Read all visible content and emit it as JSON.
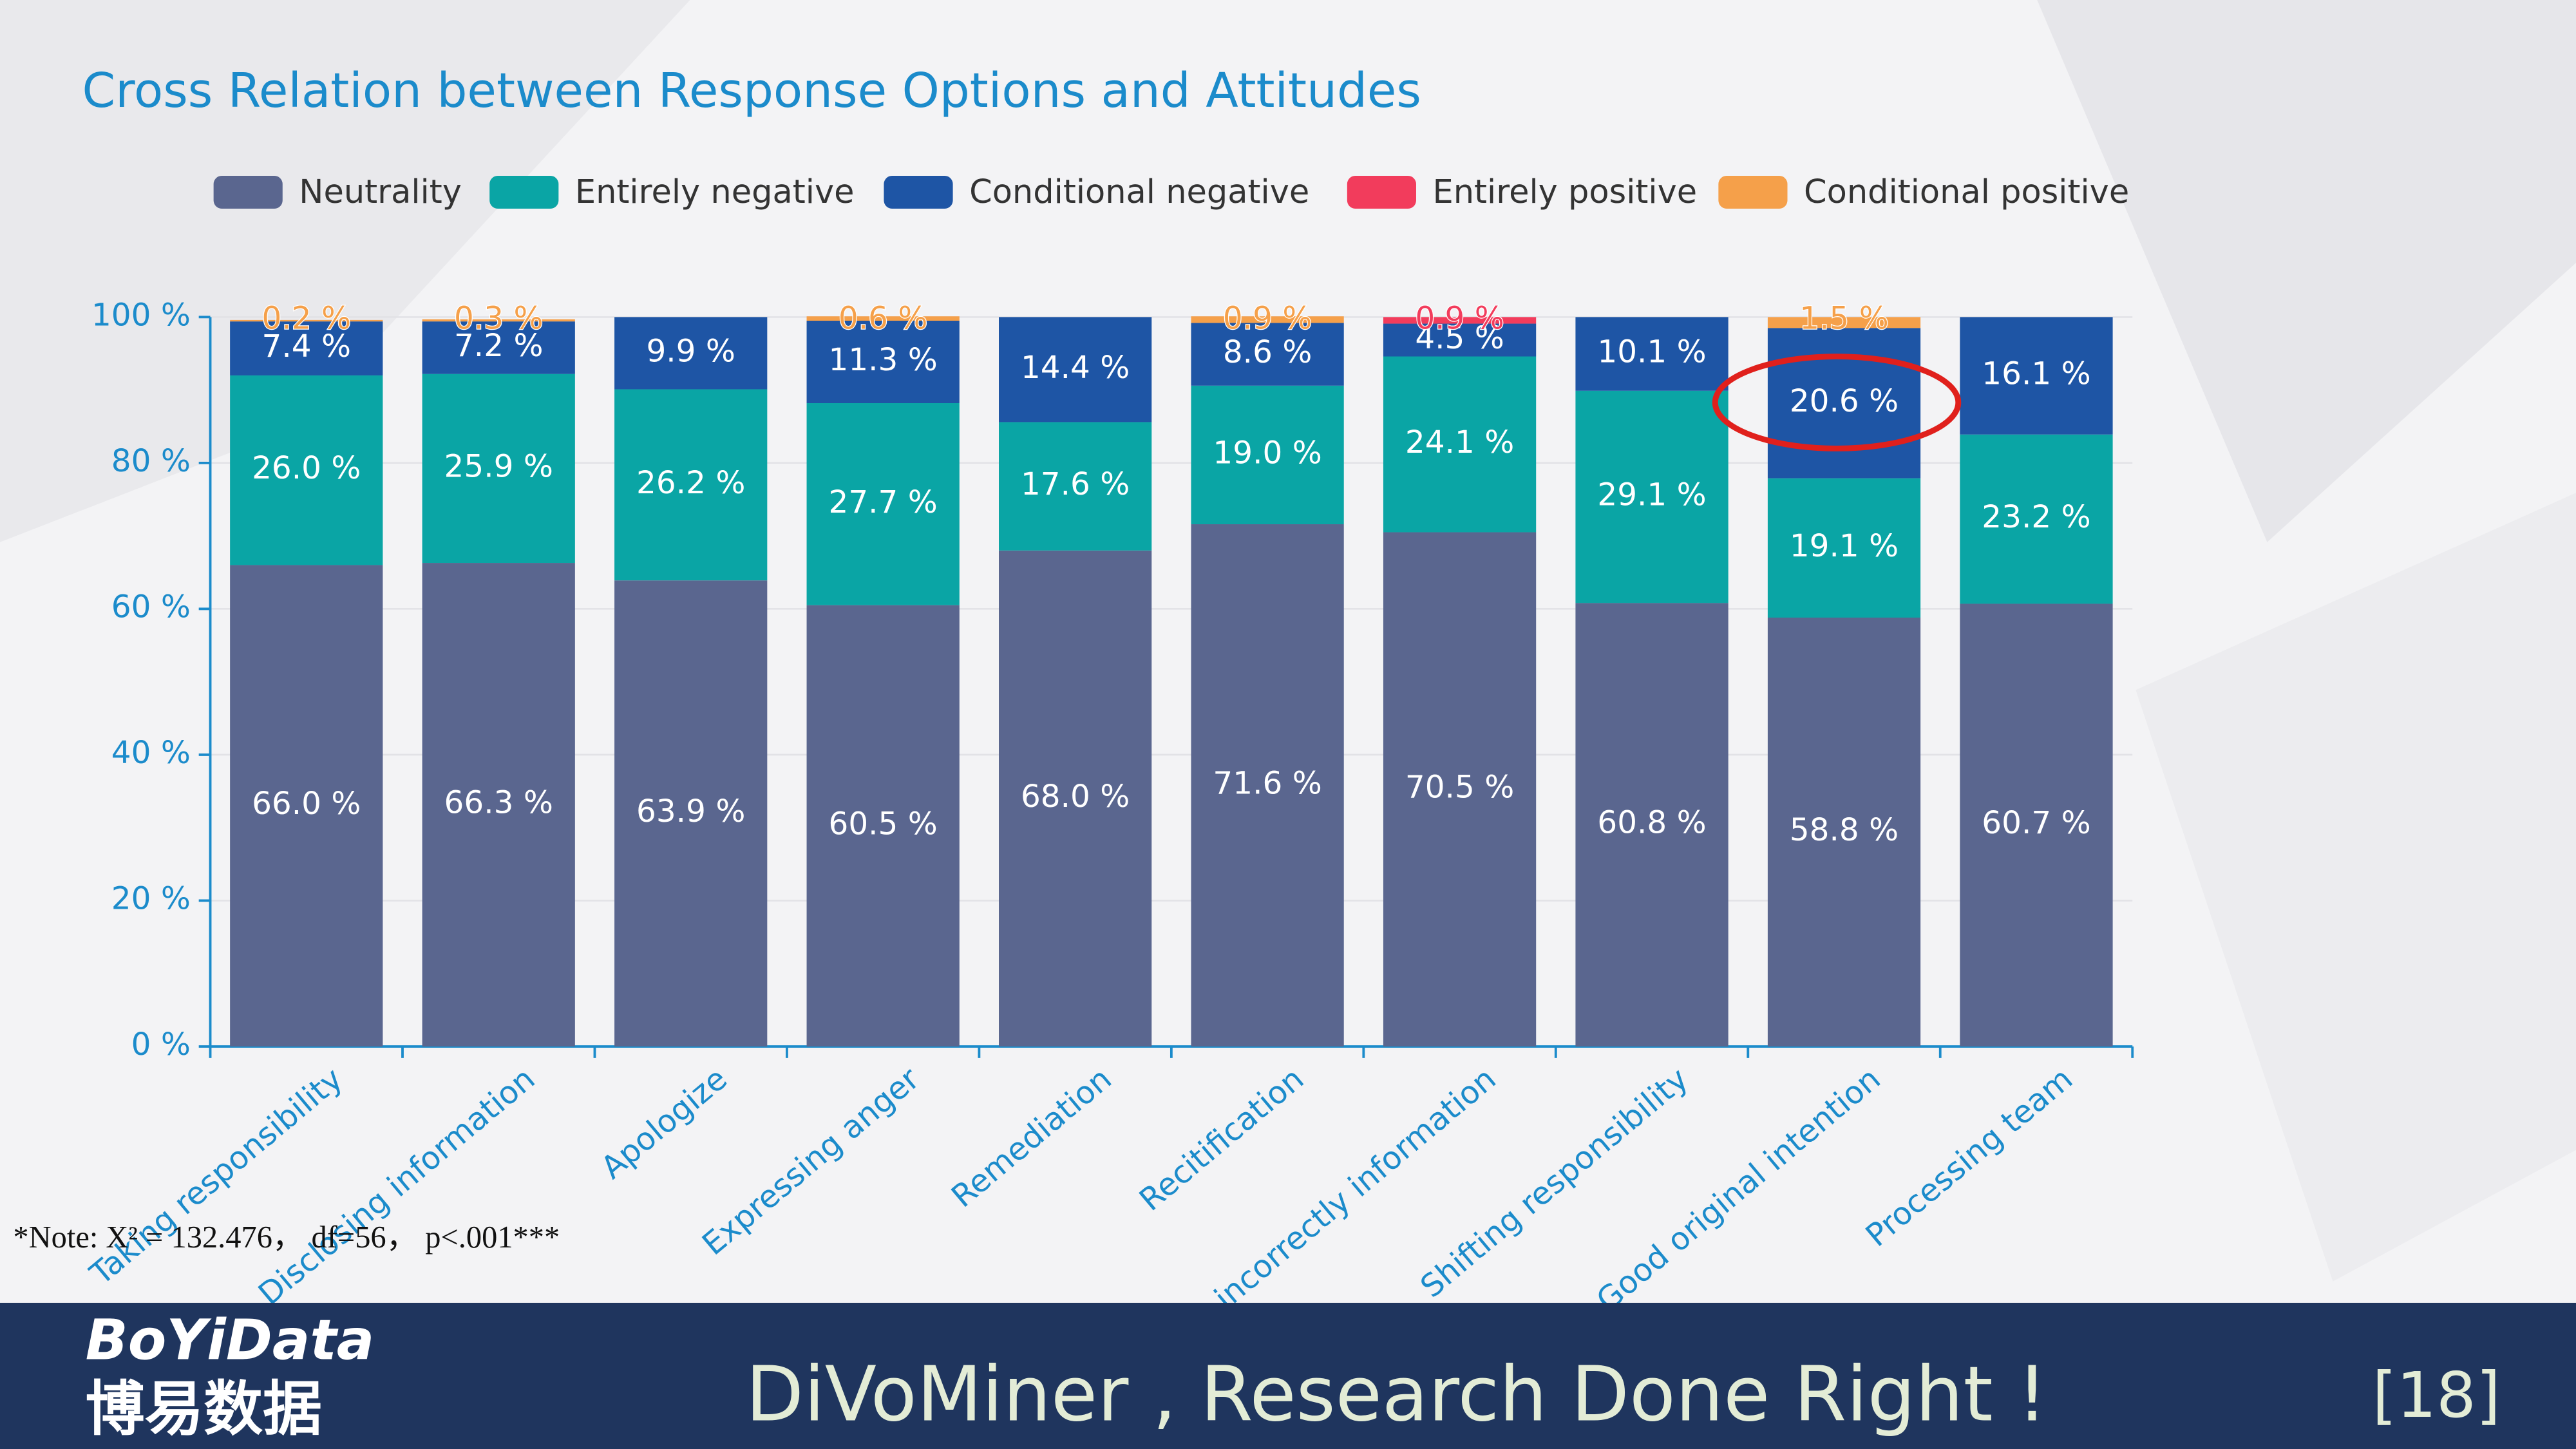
{
  "chart_data": {
    "type": "stacked_bar",
    "title": "Cross Relation between Response Options and Attitudes",
    "categories": [
      "Taking responsibility",
      "Disclosing information",
      "Apologize",
      "Expressing anger",
      "Remediation",
      "Recitification",
      "Attacking incorrectly information",
      "Shifting responsibility",
      "Good original intention",
      "Processing team"
    ],
    "series": [
      {
        "name": "Neutrality",
        "color": "#5a668f",
        "values": [
          66.0,
          66.3,
          63.9,
          60.5,
          68.0,
          71.6,
          70.5,
          60.8,
          58.8,
          60.7
        ],
        "value_labels": [
          "66.0 %",
          "66.3 %",
          "63.9 %",
          "60.5 %",
          "68.0 %",
          "71.6 %",
          "70.5 %",
          "60.8 %",
          "58.8 %",
          "60.7 %"
        ]
      },
      {
        "name": "Entirely negative",
        "color": "#0aa5a5",
        "values": [
          26.0,
          25.9,
          26.2,
          27.7,
          17.6,
          19.0,
          24.1,
          29.1,
          19.1,
          23.2
        ],
        "value_labels": [
          "26.0 %",
          "25.9 %",
          "26.2 %",
          "27.7 %",
          "17.6 %",
          "19.0 %",
          "24.1 %",
          "29.1 %",
          "19.1 %",
          "23.2 %"
        ]
      },
      {
        "name": "Conditional negative",
        "color": "#1e55a5",
        "values": [
          7.4,
          7.2,
          9.9,
          11.3,
          14.4,
          8.6,
          4.5,
          10.1,
          20.6,
          16.1
        ],
        "value_labels": [
          "7.4 %",
          "7.2 %",
          "9.9 %",
          "11.3 %",
          "14.4 %",
          "8.6 %",
          "4.5 %",
          "10.1 %",
          "20.6 %",
          "16.1 %"
        ]
      },
      {
        "name": "Entirely positive",
        "color": "#f23c5c",
        "values": [
          0,
          0,
          0,
          0,
          0,
          0,
          0.9,
          0,
          0,
          0
        ],
        "value_labels": [
          null,
          null,
          null,
          null,
          null,
          null,
          "0.9 %",
          null,
          null,
          null
        ]
      },
      {
        "name": "Conditional positive",
        "color": "#f5a04a",
        "values": [
          0.2,
          0.3,
          0,
          0.6,
          0,
          0.9,
          0,
          0,
          1.5,
          0
        ],
        "value_labels": [
          "0.2 %",
          "0.3 %",
          null,
          "0.6 %",
          null,
          "0.9 %",
          null,
          null,
          "1.5 %",
          null
        ]
      }
    ],
    "ylim": [
      0,
      100
    ],
    "yticks": [
      {
        "value": 0,
        "label": "0 %"
      },
      {
        "value": 20,
        "label": "20 %"
      },
      {
        "value": 40,
        "label": "40 %"
      },
      {
        "value": 60,
        "label": "60 %"
      },
      {
        "value": 80,
        "label": "80 %"
      },
      {
        "value": 100,
        "label": "100 %"
      }
    ],
    "grid": true,
    "legend": "top",
    "note": "*Note: X² = 132.476， df=56， p<.001***"
  },
  "footer": {
    "logo": "BoYiData",
    "logo_cn": "博易数据",
    "slogan": "DiVoMiner , Research Done Right !",
    "page": "[18]"
  }
}
